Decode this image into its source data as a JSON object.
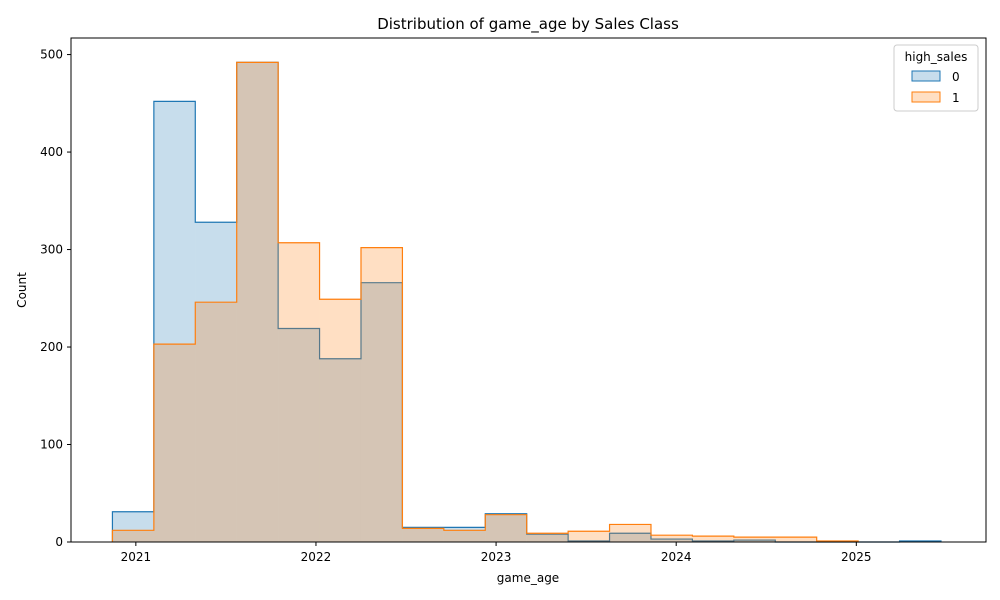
{
  "chart_data": {
    "type": "histogram",
    "title": "Distribution of game_age by Sales Class",
    "xlabel": "game_age",
    "ylabel": "Count",
    "xlim": [
      2020.64,
      2025.72
    ],
    "ylim": [
      0,
      517
    ],
    "x_ticks": [
      2021,
      2022,
      2023,
      2024,
      2025
    ],
    "x_tick_labels": [
      "2021",
      "2022",
      "2023",
      "2024",
      "2025"
    ],
    "y_ticks": [
      0,
      100,
      200,
      300,
      400,
      500
    ],
    "y_tick_labels": [
      "0",
      "100",
      "200",
      "300",
      "400",
      "500"
    ],
    "bin_edges": [
      2020.87,
      2021.1,
      2021.33,
      2021.56,
      2021.79,
      2022.02,
      2022.25,
      2022.48,
      2022.71,
      2022.94,
      2023.17,
      2023.4,
      2023.63,
      2023.86,
      2024.09,
      2024.32,
      2024.55,
      2024.78,
      2025.01,
      2025.24,
      2025.47
    ],
    "legend": {
      "title": "high_sales",
      "position": "top-right"
    },
    "series": [
      {
        "name": "0",
        "edge_color": "#1f77b4",
        "fill_color": "#1f77b4",
        "values": [
          31,
          452,
          328,
          492,
          219,
          188,
          266,
          15,
          15,
          29,
          8,
          1,
          9,
          3,
          1,
          2,
          0,
          0,
          0,
          1
        ]
      },
      {
        "name": "1",
        "edge_color": "#ff7f0e",
        "fill_color": "#ff7f0e",
        "values": [
          12,
          203,
          246,
          492,
          307,
          249,
          302,
          14,
          12,
          28,
          9,
          11,
          18,
          7,
          6,
          5,
          5,
          1,
          0,
          0
        ]
      }
    ],
    "grid": false
  }
}
